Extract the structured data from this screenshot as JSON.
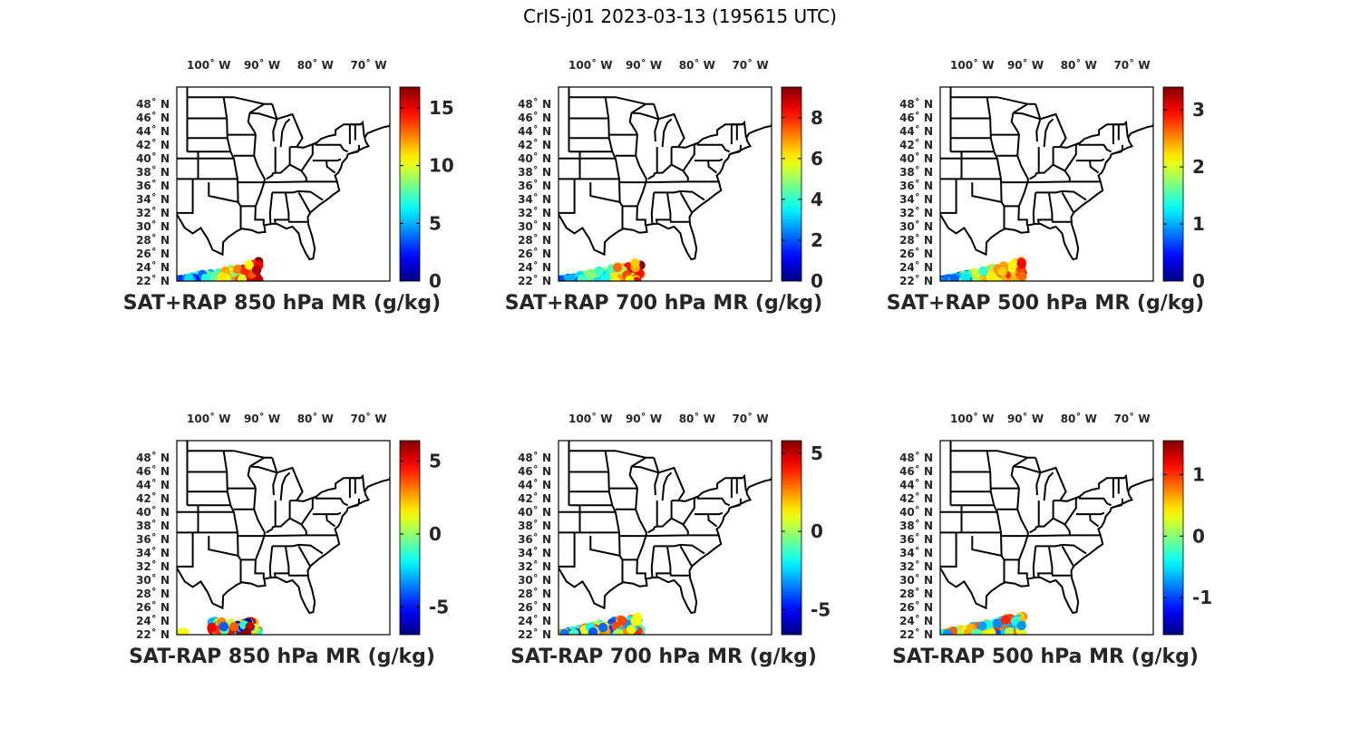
{
  "figure_title": "CrIS-j01 2023-03-13 (195615 UTC)",
  "lon_labels": [
    "100˚ W",
    "90˚ W",
    "80˚ W",
    "70˚ W"
  ],
  "lat_labels": [
    "48˚ N",
    "46˚ N",
    "44˚ N",
    "42˚ N",
    "40˚ N",
    "38˚ N",
    "36˚ N",
    "34˚ N",
    "32˚ N",
    "30˚ N",
    "28˚ N",
    "26˚ N",
    "24˚ N",
    "22˚ N"
  ],
  "colormap": "jet",
  "panels": [
    {
      "id": "sat-rap-850",
      "title": "SAT+RAP 850 hPa MR (g/kg)",
      "cmin": 0,
      "cmax": 16.8,
      "ticks": [
        "0",
        "5",
        "10",
        "15"
      ],
      "tick_values": [
        0,
        5,
        10,
        15
      ],
      "field_type": "abs"
    },
    {
      "id": "sat-rap-700",
      "title": "SAT+RAP 700 hPa MR (g/kg)",
      "cmin": 0,
      "cmax": 9.5,
      "ticks": [
        "0",
        "2",
        "4",
        "6",
        "8"
      ],
      "tick_values": [
        0,
        2,
        4,
        6,
        8
      ],
      "field_type": "abs"
    },
    {
      "id": "sat-rap-500",
      "title": "SAT+RAP 500 hPa MR (g/kg)",
      "cmin": 0,
      "cmax": 3.4,
      "ticks": [
        "0",
        "1",
        "2",
        "3"
      ],
      "tick_values": [
        0,
        1,
        2,
        3
      ],
      "field_type": "abs"
    },
    {
      "id": "sat-minus-rap-850",
      "title": "SAT-RAP 850 hPa MR (g/kg)",
      "cmin": -6.9,
      "cmax": 6.4,
      "ticks": [
        "-5",
        "0",
        "5"
      ],
      "tick_values": [
        -5,
        0,
        5
      ],
      "field_type": "diff850"
    },
    {
      "id": "sat-minus-rap-700",
      "title": "SAT-RAP 700 hPa MR (g/kg)",
      "cmin": -6.6,
      "cmax": 5.8,
      "ticks": [
        "-5",
        "0",
        "5"
      ],
      "tick_values": [
        -5,
        0,
        5
      ],
      "field_type": "diff"
    },
    {
      "id": "sat-minus-rap-500",
      "title": "SAT-RAP 500 hPa MR (g/kg)",
      "cmin": -1.6,
      "cmax": 1.55,
      "ticks": [
        "-1",
        "0",
        "1"
      ],
      "tick_values": [
        -1,
        0,
        1
      ],
      "field_type": "diff"
    }
  ]
}
